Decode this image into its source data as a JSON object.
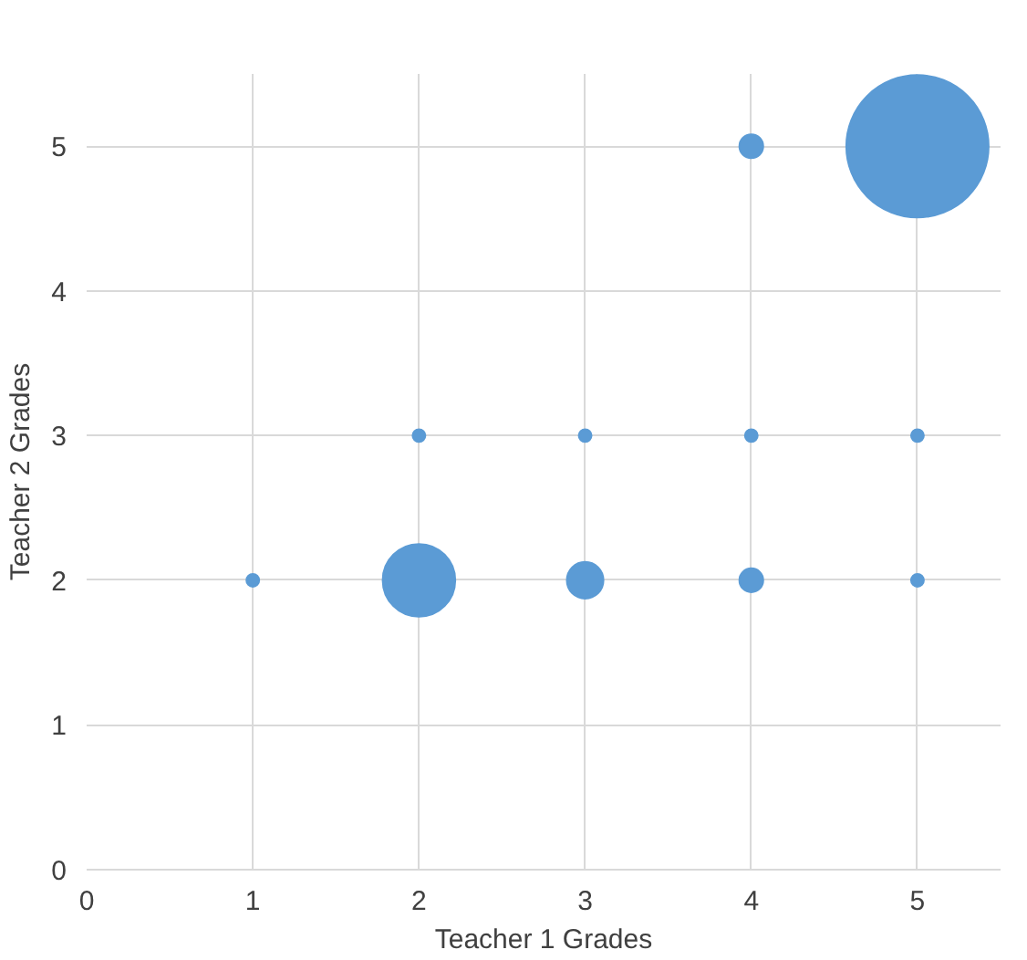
{
  "chart_data": {
    "type": "bubble",
    "xlabel": "Teacher 1 Grades",
    "ylabel": "Teacher 2 Grades",
    "x": [
      1,
      2,
      3,
      4,
      5,
      2,
      3,
      4,
      5,
      4,
      5
    ],
    "values": [
      2,
      2,
      2,
      2,
      2,
      3,
      3,
      3,
      3,
      5,
      5
    ],
    "sizes": [
      0.008,
      0.26,
      0.066,
      0.028,
      0.008,
      0.008,
      0.008,
      0.008,
      0.008,
      0.028,
      1
    ],
    "color": "#5b9bd5",
    "xlim": [
      0,
      5.5
    ],
    "ylim": [
      0,
      5.5
    ],
    "xticks": [
      0,
      1,
      2,
      3,
      4,
      5
    ],
    "yticks": [
      0,
      1,
      2,
      3,
      4,
      5
    ],
    "grid": true
  }
}
